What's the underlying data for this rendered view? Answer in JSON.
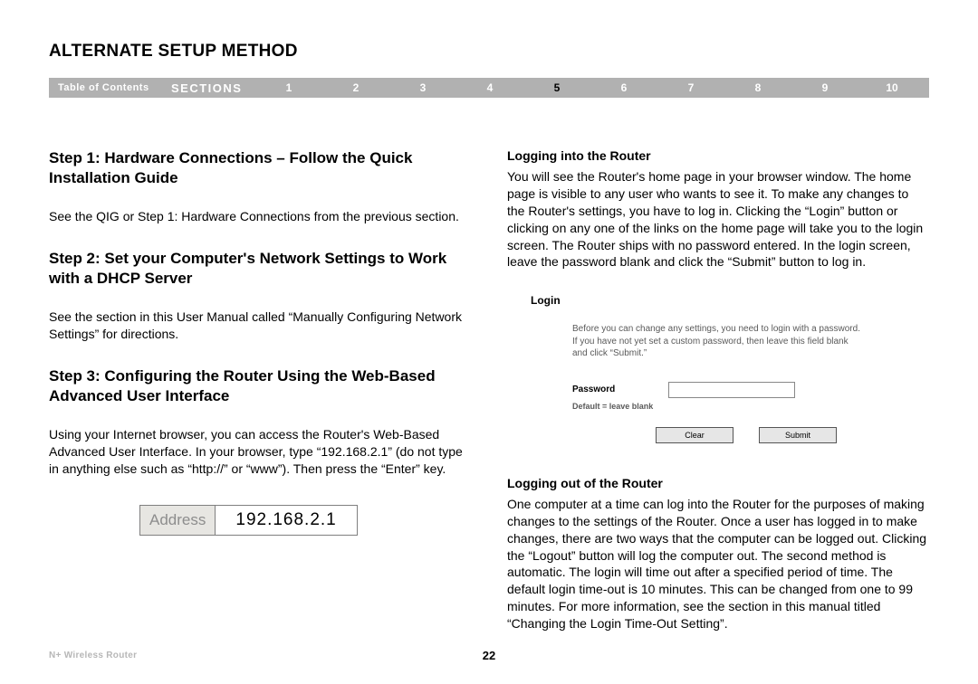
{
  "title": "ALTERNATE SETUP METHOD",
  "navbar": {
    "toc": "Table of Contents",
    "sections_label": "SECTIONS",
    "sections": [
      "1",
      "2",
      "3",
      "4",
      "5",
      "6",
      "7",
      "8",
      "9",
      "10"
    ],
    "active_index": 4,
    "bg_color": "#b1b1b1",
    "text_color": "#ffffff",
    "active_color": "#000000"
  },
  "left": {
    "step1_heading": "Step 1: Hardware Connections – Follow the Quick Installation Guide",
    "step1_body": "See the QIG or Step 1: Hardware Connections from the previous section.",
    "step2_heading": "Step 2: Set your Computer's Network Settings to Work with a DHCP Server",
    "step2_body": "See the section in this User Manual called “Manually Configuring Network Settings” for directions.",
    "step3_heading": "Step 3: Configuring the Router Using the Web-Based Advanced User Interface",
    "step3_body": "Using your Internet browser, you can access the Router's Web-Based Advanced User Interface. In your browser, type “192.168.2.1” (do not type in anything else such as “http://” or “www”). Then press the “Enter” key.",
    "address_label": "Address",
    "address_value": "192.168.2.1"
  },
  "right": {
    "login_heading": "Logging into the Router",
    "login_body": "You will see the Router's home page in your browser window. The home page is visible to any user who wants to see it. To make any changes to the Router's settings, you have to log in. Clicking the “Login” button or clicking on any one of the links on the home page will take you to the login screen. The Router ships with no password entered. In the login screen, leave the password blank and click the “Submit” button to log in.",
    "login_panel": {
      "title": "Login",
      "description": "Before you can change any settings, you need to login with a password. If you have not yet set a custom password, then leave this field blank and click “Submit.”",
      "password_label": "Password",
      "password_value": "",
      "hint": "Default = leave blank",
      "clear_label": "Clear",
      "submit_label": "Submit",
      "button_bg": "#e6e6e6"
    },
    "logout_heading": "Logging out of the Router",
    "logout_body": "One computer at a time can log into the Router for the purposes of making changes to the settings of the Router. Once a user has logged in to make changes, there are two ways that the computer can be logged out. Clicking the “Logout” button will log the computer out. The second method is automatic. The login will time out after a specified period of time. The default login time-out is 10 minutes. This can be changed from one to 99 minutes. For more information, see the section in this manual titled “Changing the Login Time-Out Setting”."
  },
  "footer": {
    "product": "N+ Wireless Router",
    "page_number": "22"
  }
}
